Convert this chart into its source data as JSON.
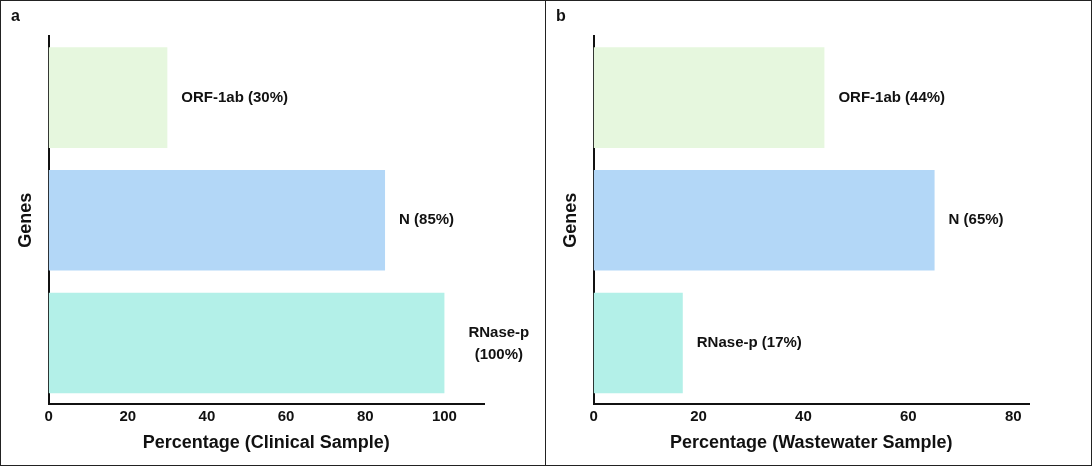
{
  "chart_data": [
    {
      "type": "bar",
      "orientation": "horizontal",
      "title": "a",
      "xlabel": "Percentage (Clinical Sample)",
      "ylabel": "Genes",
      "categories": [
        "ORF-1ab",
        "N",
        "RNase-p"
      ],
      "values": [
        30,
        85,
        100
      ],
      "colors": [
        "#e6f7de",
        "#b3d7f7",
        "#b3f0e8"
      ],
      "value_labels": [
        "(30%)",
        "(85%)",
        "(100%)"
      ],
      "xlim": [
        0,
        110
      ],
      "xticks": [
        0,
        20,
        40,
        60,
        80,
        100
      ],
      "grid": false,
      "legend": false,
      "tick_labels": "x"
    },
    {
      "type": "bar",
      "orientation": "horizontal",
      "title": "b",
      "xlabel": "Percentage (Wastewater Sample)",
      "ylabel": "Genes",
      "categories": [
        "ORF-1ab",
        "N",
        "RNase-p"
      ],
      "values": [
        44,
        65,
        17
      ],
      "colors": [
        "#e6f7de",
        "#b3d7f7",
        "#b3f0e8"
      ],
      "value_labels": [
        "(44%)",
        "(65%)",
        "(17%)"
      ],
      "xlim": [
        0,
        83
      ],
      "xticks": [
        0,
        20,
        40,
        60,
        80
      ],
      "grid": false,
      "legend": false,
      "tick_labels": "x"
    }
  ]
}
